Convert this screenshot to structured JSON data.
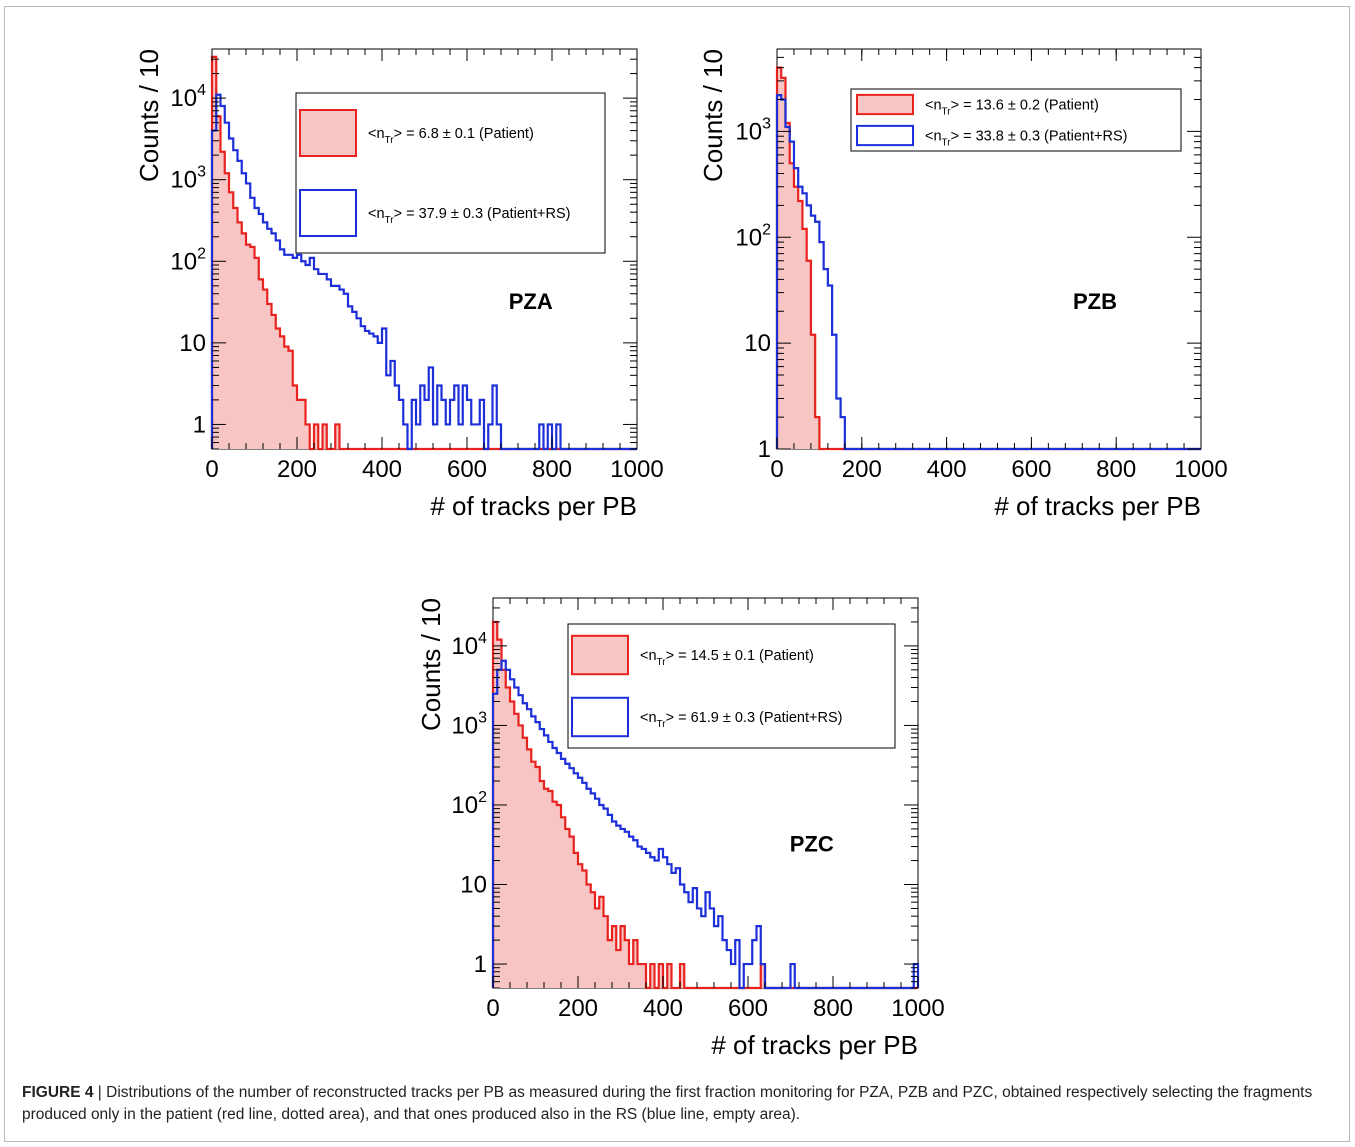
{
  "figure": {
    "caption_label": "FIGURE 4",
    "caption_separator": " | ",
    "caption_text": "Distributions of the number of reconstructed tracks per PB as measured during the first fraction monitoring for PZA, PZB and PZC, obtained respectively selecting the fragments produced only in the patient (red line, dotted area), and that ones produced also in the RS (blue line, empty area)."
  },
  "colors": {
    "patient": "#e8231f",
    "patient_fill": "#f7c6c4",
    "patient_rs": "#1d2fd8",
    "axis": "#000000"
  },
  "chart_data": [
    {
      "type": "histogram",
      "panel_label": "PZA",
      "xlabel": "# of tracks per PB",
      "ylabel": "Counts / 10",
      "xlim": [
        0,
        1000
      ],
      "ylim": [
        0.5,
        40000
      ],
      "yscale": "log",
      "xticks": [
        0,
        200,
        400,
        600,
        800,
        1000
      ],
      "yticks": [
        {
          "value": 1,
          "label": "1"
        },
        {
          "value": 10,
          "label": "10"
        },
        {
          "value": 100,
          "label": "10",
          "exp": "2"
        },
        {
          "value": 1000,
          "label": "10",
          "exp": "3"
        },
        {
          "value": 10000,
          "label": "10",
          "exp": "4"
        }
      ],
      "legend_position": "top-right",
      "bin_width": 10,
      "series": [
        {
          "name_prefix": "<n",
          "name_sub": "Tr",
          "name_suffix": "> = 6.8 ± 0.1 (Patient)",
          "color": "#e8231f",
          "filled": true,
          "x_start": 0,
          "counts": [
            32000,
            6000,
            2200,
            1200,
            700,
            450,
            300,
            220,
            160,
            150,
            110,
            60,
            45,
            30,
            22,
            15,
            12,
            9,
            8,
            3,
            2,
            2,
            1,
            0,
            1,
            0,
            1,
            0,
            0,
            1
          ]
        },
        {
          "name_prefix": "<n",
          "name_sub": "Tr",
          "name_suffix": "> = 37.9 ± 0.3 (Patient+RS)",
          "color": "#1d2fd8",
          "filled": false,
          "x_start": 0,
          "counts": [
            4000,
            11000,
            8000,
            5000,
            3200,
            2300,
            1700,
            1200,
            900,
            600,
            450,
            380,
            300,
            250,
            220,
            180,
            140,
            120,
            120,
            110,
            120,
            100,
            90,
            110,
            80,
            70,
            70,
            60,
            50,
            50,
            45,
            40,
            28,
            24,
            20,
            16,
            14,
            13,
            12,
            10,
            15,
            4,
            6,
            3,
            2,
            1,
            0.5,
            2,
            1,
            3,
            2,
            5,
            1,
            3,
            2,
            1,
            2,
            3,
            1,
            3,
            2,
            1,
            1,
            2,
            0.5,
            1,
            3,
            1,
            0.5,
            0.5,
            0.5,
            0.5,
            0.5,
            0.5,
            0.5,
            0.5,
            0.5,
            1,
            0.5,
            1,
            0.5,
            1
          ]
        }
      ]
    },
    {
      "type": "histogram",
      "panel_label": "PZB",
      "xlabel": "# of tracks per PB",
      "ylabel": "Counts / 10",
      "xlim": [
        0,
        1000
      ],
      "ylim": [
        1,
        6000
      ],
      "yscale": "log",
      "xticks": [
        0,
        200,
        400,
        600,
        800,
        1000
      ],
      "yticks": [
        {
          "value": 1,
          "label": "1"
        },
        {
          "value": 10,
          "label": "10"
        },
        {
          "value": 100,
          "label": "10",
          "exp": "2"
        },
        {
          "value": 1000,
          "label": "10",
          "exp": "3"
        }
      ],
      "legend_position": "top-right",
      "bin_width": 10,
      "series": [
        {
          "name_prefix": "<n",
          "name_sub": "Tr",
          "name_suffix": "> = 13.6 ± 0.2 (Patient)",
          "color": "#e8231f",
          "filled": true,
          "x_start": 0,
          "counts": [
            4000,
            3200,
            1200,
            500,
            300,
            220,
            120,
            60,
            12,
            2
          ]
        },
        {
          "name_prefix": "<n",
          "name_sub": "Tr",
          "name_suffix": "> = 33.8 ± 0.3 (Patient+RS)",
          "color": "#1d2fd8",
          "filled": false,
          "x_start": 0,
          "counts": [
            2200,
            2000,
            1100,
            800,
            450,
            300,
            260,
            200,
            160,
            140,
            90,
            50,
            35,
            12,
            3,
            2,
            1
          ]
        }
      ]
    },
    {
      "type": "histogram",
      "panel_label": "PZC",
      "xlabel": "# of tracks per PB",
      "ylabel": "Counts / 10",
      "xlim": [
        0,
        1000
      ],
      "ylim": [
        0.5,
        40000
      ],
      "yscale": "log",
      "xticks": [
        0,
        200,
        400,
        600,
        800,
        1000
      ],
      "yticks": [
        {
          "value": 1,
          "label": "1"
        },
        {
          "value": 10,
          "label": "10"
        },
        {
          "value": 100,
          "label": "10",
          "exp": "2"
        },
        {
          "value": 1000,
          "label": "10",
          "exp": "3"
        },
        {
          "value": 10000,
          "label": "10",
          "exp": "4"
        }
      ],
      "legend_position": "top-right",
      "bin_width": 10,
      "series": [
        {
          "name_prefix": "<n",
          "name_sub": "Tr",
          "name_suffix": "> = 14.5 ± 0.1 (Patient)",
          "color": "#e8231f",
          "filled": true,
          "x_start": 0,
          "counts": [
            20000,
            12000,
            5000,
            3000,
            2000,
            1400,
            1000,
            700,
            500,
            350,
            300,
            200,
            160,
            150,
            110,
            100,
            70,
            50,
            40,
            25,
            18,
            15,
            10,
            8,
            5,
            7,
            4,
            2,
            3,
            1.5,
            3,
            2,
            1,
            2,
            1,
            1,
            0.5,
            1,
            0.5,
            1,
            0.5,
            1,
            0.5,
            0.5,
            1,
            0.5,
            0.5,
            0.5,
            0.5,
            0.5,
            0.5,
            0.5,
            0.5,
            0.5,
            0.5,
            0.5,
            0.5,
            0.5,
            0.5,
            0.5,
            0.5,
            0.5,
            0.5,
            1
          ]
        },
        {
          "name_prefix": "<n",
          "name_sub": "Tr",
          "name_suffix": "> = 61.9 ± 0.3 (Patient+RS)",
          "color": "#1d2fd8",
          "filled": false,
          "x_start": 0,
          "counts": [
            2500,
            5000,
            6500,
            5000,
            3800,
            3000,
            2400,
            1900,
            1600,
            1300,
            1100,
            900,
            750,
            620,
            520,
            450,
            380,
            330,
            290,
            250,
            220,
            190,
            160,
            140,
            120,
            100,
            90,
            75,
            62,
            55,
            50,
            46,
            40,
            36,
            30,
            28,
            25,
            22,
            20,
            28,
            22,
            18,
            14,
            16,
            10,
            8,
            6,
            9,
            5,
            4,
            8,
            5,
            3,
            4,
            2,
            1.5,
            1,
            2,
            0.5,
            1,
            1,
            2,
            3,
            1,
            0.5,
            0.5,
            0.5,
            0.5,
            0.5,
            0.5,
            1,
            0.5,
            0.5,
            0.5,
            0.5,
            0.5,
            0.5,
            0.5,
            0.5,
            0.5,
            0.5,
            0.5,
            0.5,
            0.5,
            0.5,
            0.5,
            0.5,
            0.5,
            0.5,
            0.5,
            0.5,
            0.5,
            0.5,
            0.5,
            0.5,
            0.5,
            0.5,
            0.5,
            0.5,
            1
          ]
        }
      ]
    }
  ]
}
